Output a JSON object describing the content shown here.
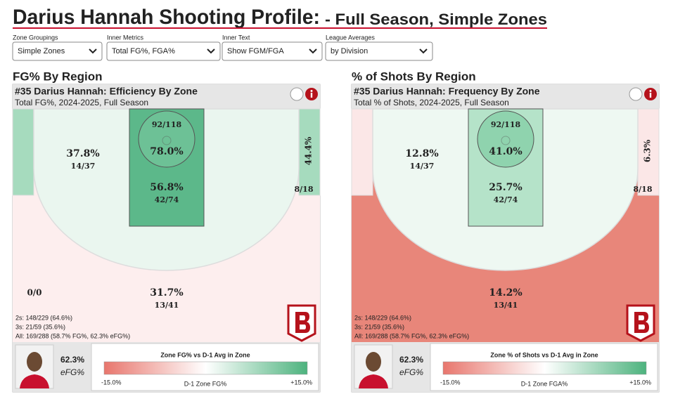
{
  "header": {
    "title": "Darius Hannah Shooting Profile:",
    "subtitle": "- Full Season, Simple Zones"
  },
  "controls": [
    {
      "label": "Zone Groupings",
      "value": "Simple Zones"
    },
    {
      "label": "Inner Metrics",
      "value": "Total FG%, FGA%"
    },
    {
      "label": "Inner Text",
      "value": "Show FGM/FGA"
    },
    {
      "label": "League Averages",
      "value": "by Division"
    }
  ],
  "panels": [
    {
      "heading": "FG% By Region",
      "title": "#35 Darius Hannah: Efficiency By Zone",
      "subtitle": "Total FG%, 2024-2025, Full Season",
      "zones": {
        "three": {
          "color": "#fdeeee",
          "pct": "31.7%",
          "shots": "13/41"
        },
        "midrange": {
          "color": "#eaf6ef",
          "pct": "37.8%",
          "shots": "14/37"
        },
        "corner": {
          "color": "#a6dbbe",
          "pct": "44.4%",
          "shots": "8/18"
        },
        "paint": {
          "color": "#5cb88a",
          "pct": "56.8%",
          "shots": "42/74"
        },
        "rim": {
          "color": "#6dc196",
          "pct": "78.0%",
          "shots": "92/118"
        },
        "backcourt": {
          "shots": "0/0"
        }
      },
      "stats": [
        "2s: 148/229 (64.6%)",
        "3s: 21/59 (35.6%)",
        "All: 169/288 (58.7% FG%, 62.3% eFG%)"
      ],
      "efg": "62.3%",
      "efg_label": "eFG%",
      "legend": {
        "title": "Zone FG% vs D-1 Avg in Zone",
        "min": "-15.0%",
        "mid": "D-1 Zone FG%",
        "max": "+15.0%",
        "low_color": "#e8766d",
        "high_color": "#4db37e"
      }
    },
    {
      "heading": "% of Shots By Region",
      "title": "#35 Darius Hannah: Frequency By Zone",
      "subtitle": "Total % of Shots, 2024-2025, Full Season",
      "zones": {
        "three": {
          "color": "#e8867a",
          "pct": "14.2%",
          "shots": "13/41"
        },
        "midrange": {
          "color": "#eef8f2",
          "pct": "12.8%",
          "shots": "14/37"
        },
        "corner": {
          "color": "#fbe7e7",
          "pct": "6.3%",
          "shots": "8/18"
        },
        "paint": {
          "color": "#b5e3c9",
          "pct": "25.7%",
          "shots": "42/74"
        },
        "rim": {
          "color": "#8fd3ae",
          "pct": "41.0%",
          "shots": "92/118"
        }
      },
      "stats": [
        "2s: 148/229 (64.6%)",
        "3s: 21/59 (35.6%)",
        "All: 169/288 (58.7% FG%, 62.3% eFG%)"
      ],
      "efg": "62.3%",
      "efg_label": "eFG%",
      "legend": {
        "title": "Zone % of Shots vs D-1 Avg in Zone",
        "min": "-15.0%",
        "mid": "D-1 Zone FGA%",
        "max": "+15.0%",
        "low_color": "#e8766d",
        "high_color": "#4db37e"
      }
    }
  ]
}
